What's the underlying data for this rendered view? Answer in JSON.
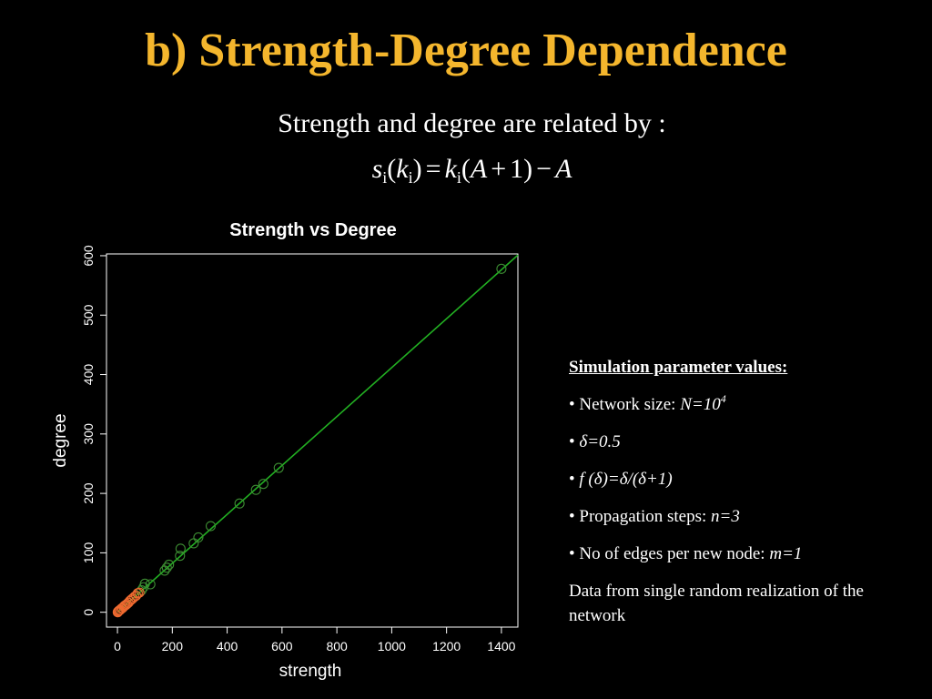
{
  "slide": {
    "title": "b) Strength-Degree Dependence",
    "formula_intro": "Strength  and degree are related  by :",
    "formula": {
      "s": "s",
      "i": "i",
      "k": "k",
      "A": "A",
      "one": "1",
      "lparen": "(",
      "rparen": ")",
      "equals": "=",
      "plus": "+",
      "minus": "−"
    }
  },
  "params": {
    "heading": "Simulation parameter values:",
    "network_size_label": "• Network size: ",
    "network_size_value": "N=10",
    "network_size_exp": "4",
    "delta_bullet": "• ",
    "delta_value": "δ=0.5",
    "f_bullet": "• ",
    "f_value": "f (δ)=δ/(δ+1)",
    "propagation_label": "• Propagation steps: ",
    "propagation_value": "n=3",
    "edges_label": "• No of edges per new node: ",
    "edges_value": "m=1",
    "note": "Data from single random realization of the network"
  },
  "chart_data": {
    "type": "scatter",
    "title": "Strength vs Degree",
    "xlabel": "strength",
    "ylabel": "degree",
    "xlim": [
      -40,
      1460
    ],
    "ylim": [
      -25,
      603
    ],
    "xticks": [
      "0",
      "200",
      "400",
      "600",
      "800",
      "1000",
      "1200",
      "1400"
    ],
    "yticks": [
      "0",
      "100",
      "200",
      "300",
      "400",
      "500",
      "600"
    ],
    "fit_line": {
      "slope": 0.4117,
      "intercept": 0
    },
    "colors": {
      "line": "#22b022",
      "point": "#3c8c32",
      "dense_point": "#ee6a30",
      "axis": "#ffffff"
    },
    "points": [
      [
        1400,
        578
      ],
      [
        588,
        243
      ],
      [
        532,
        216
      ],
      [
        505,
        206
      ],
      [
        445,
        183
      ],
      [
        340,
        145
      ],
      [
        295,
        126
      ],
      [
        278,
        116
      ],
      [
        230,
        107
      ],
      [
        228,
        95
      ],
      [
        188,
        80
      ],
      [
        180,
        75
      ],
      [
        172,
        70
      ],
      [
        120,
        47
      ],
      [
        100,
        48
      ],
      [
        95,
        42
      ],
      [
        88,
        37
      ],
      [
        80,
        33
      ],
      [
        74,
        32
      ],
      [
        68,
        28
      ],
      [
        62,
        26
      ],
      [
        55,
        23
      ],
      [
        50,
        21
      ],
      [
        45,
        19
      ],
      [
        40,
        16
      ],
      [
        35,
        14
      ],
      [
        30,
        12
      ],
      [
        26,
        11
      ],
      [
        22,
        9
      ],
      [
        18,
        7
      ],
      [
        14,
        6
      ],
      [
        10,
        4
      ],
      [
        7,
        3
      ],
      [
        4,
        2
      ],
      [
        2,
        1
      ],
      [
        1,
        0
      ]
    ]
  }
}
